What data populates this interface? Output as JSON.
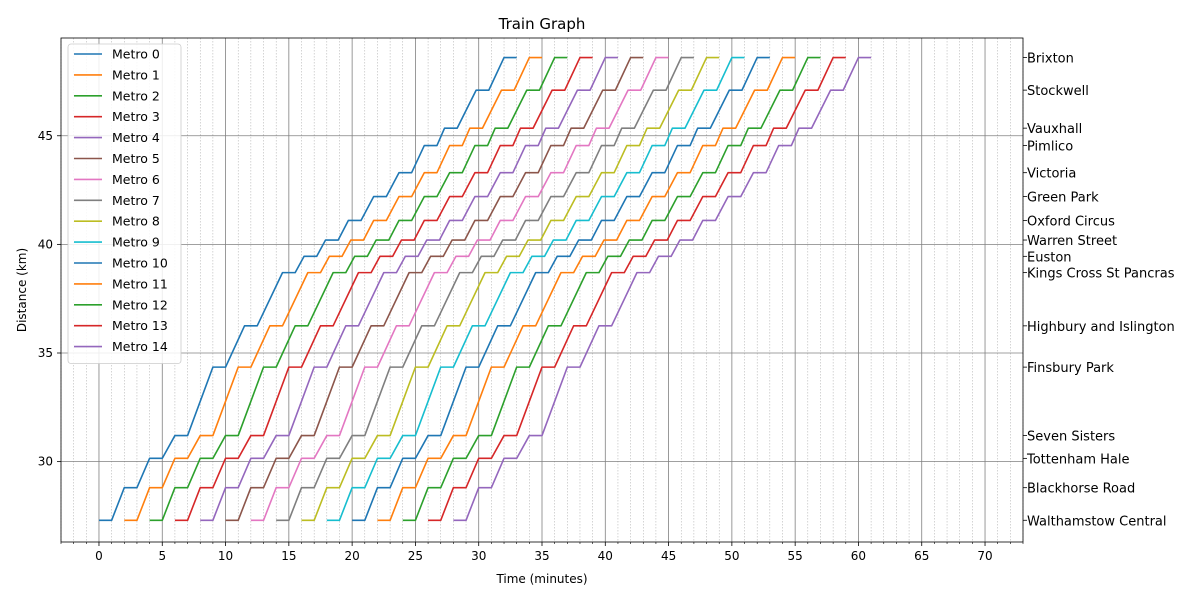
{
  "chart_data": {
    "type": "line",
    "title": "Train Graph",
    "xlabel": "Time (minutes)",
    "ylabel": "Distance (km)",
    "xlim": [
      -3,
      73
    ],
    "ylim": [
      26.3,
      49.5
    ],
    "x_major_ticks": [
      0,
      5,
      10,
      15,
      20,
      25,
      30,
      35,
      40,
      45,
      50,
      55,
      60,
      65,
      70
    ],
    "y_major_ticks": [
      30,
      35,
      40,
      45
    ],
    "grid": "major solid + minor dotted every minute",
    "legend_position": "top-left",
    "stations": [
      {
        "name": "Walthamstow Central",
        "km": 27.3
      },
      {
        "name": "Blackhorse Road",
        "km": 28.8
      },
      {
        "name": "Tottenham Hale",
        "km": 30.15
      },
      {
        "name": "Seven Sisters",
        "km": 31.2
      },
      {
        "name": "Finsbury Park",
        "km": 34.35
      },
      {
        "name": "Highbury and Islington",
        "km": 36.25
      },
      {
        "name": "Kings Cross St Pancras",
        "km": 38.7
      },
      {
        "name": "Euston",
        "km": 39.45
      },
      {
        "name": "Warren Street",
        "km": 40.2
      },
      {
        "name": "Oxford Circus",
        "km": 41.1
      },
      {
        "name": "Green Park",
        "km": 42.2
      },
      {
        "name": "Victoria",
        "km": 43.3
      },
      {
        "name": "Pimlico",
        "km": 44.55
      },
      {
        "name": "Vauxhall",
        "km": 45.35
      },
      {
        "name": "Stockwell",
        "km": 47.1
      },
      {
        "name": "Brixton",
        "km": 48.6
      }
    ],
    "run_times_min": [
      1.0,
      1.0,
      1.0,
      2.0,
      1.5,
      2.0,
      0.7,
      0.7,
      0.8,
      1.0,
      1.0,
      1.0,
      0.6,
      1.5,
      1.2
    ],
    "dwell_min": 1.0,
    "series": [
      {
        "name": "Metro 0",
        "departure": 0,
        "color": "#1f77b4"
      },
      {
        "name": "Metro 1",
        "departure": 2,
        "color": "#ff7f0e"
      },
      {
        "name": "Metro 2",
        "departure": 4,
        "color": "#2ca02c"
      },
      {
        "name": "Metro 3",
        "departure": 6,
        "color": "#d62728"
      },
      {
        "name": "Metro 4",
        "departure": 8,
        "color": "#9467bd"
      },
      {
        "name": "Metro 5",
        "departure": 10,
        "color": "#8c564b"
      },
      {
        "name": "Metro 6",
        "departure": 12,
        "color": "#e377c2"
      },
      {
        "name": "Metro 7",
        "departure": 14,
        "color": "#7f7f7f"
      },
      {
        "name": "Metro 8",
        "departure": 16,
        "color": "#bcbd22"
      },
      {
        "name": "Metro 9",
        "departure": 18,
        "color": "#17becf"
      },
      {
        "name": "Metro 10",
        "departure": 20,
        "color": "#1f77b4"
      },
      {
        "name": "Metro 11",
        "departure": 22,
        "color": "#ff7f0e"
      },
      {
        "name": "Metro 12",
        "departure": 24,
        "color": "#2ca02c"
      },
      {
        "name": "Metro 13",
        "departure": 26,
        "color": "#d62728"
      },
      {
        "name": "Metro 14",
        "departure": 28,
        "color": "#9467bd"
      }
    ]
  }
}
